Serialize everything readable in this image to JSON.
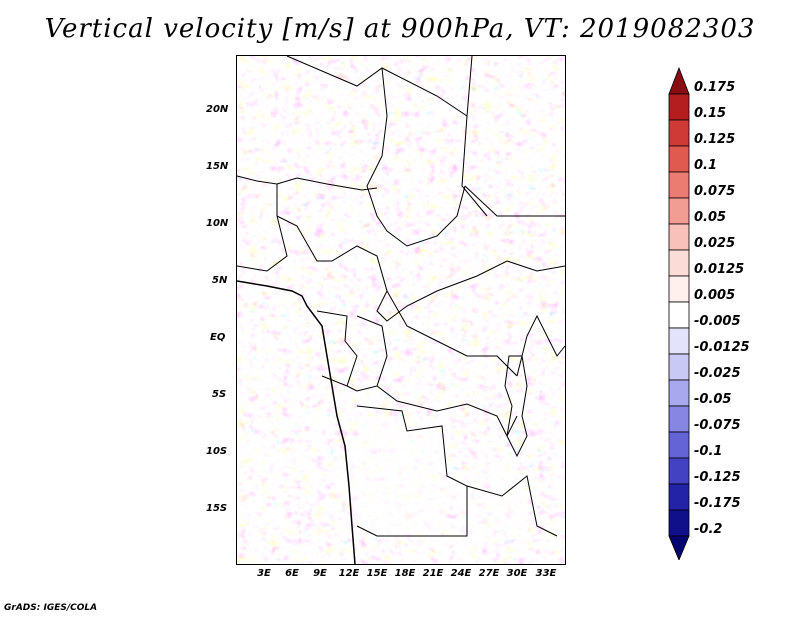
{
  "title": "Vertical velocity [m/s] at 900hPa, VT: 2019082303",
  "footer": "GrADS: IGES/COLA",
  "map": {
    "lat_labels": [
      "20N",
      "15N",
      "10N",
      "5N",
      "EQ",
      "5S",
      "10S",
      "15S"
    ],
    "lon_labels": [
      "3E",
      "6E",
      "9E",
      "12E",
      "15E",
      "18E",
      "21E",
      "24E",
      "27E",
      "30E",
      "33E"
    ]
  },
  "colorbar": {
    "labels": [
      "0.175",
      "0.15",
      "0.125",
      "0.1",
      "0.075",
      "0.05",
      "0.025",
      "0.0125",
      "0.005",
      "-0.005",
      "-0.0125",
      "-0.025",
      "-0.05",
      "-0.075",
      "-0.1",
      "-0.125",
      "-0.175",
      "-0.2"
    ],
    "colors": [
      "#8b0d14",
      "#b41e1e",
      "#cf3a36",
      "#e05a50",
      "#ea7c72",
      "#f29d94",
      "#f8c1ba",
      "#fcdcd6",
      "#fff0ee",
      "#ffffff",
      "#e3e3fb",
      "#c9c9f5",
      "#a8a8ee",
      "#8787e3",
      "#6464d6",
      "#4242c2",
      "#2323a8",
      "#10108a",
      "#050570"
    ]
  },
  "colors": {
    "red_accent": "#e05a50",
    "blue_accent": "#6464d6"
  }
}
